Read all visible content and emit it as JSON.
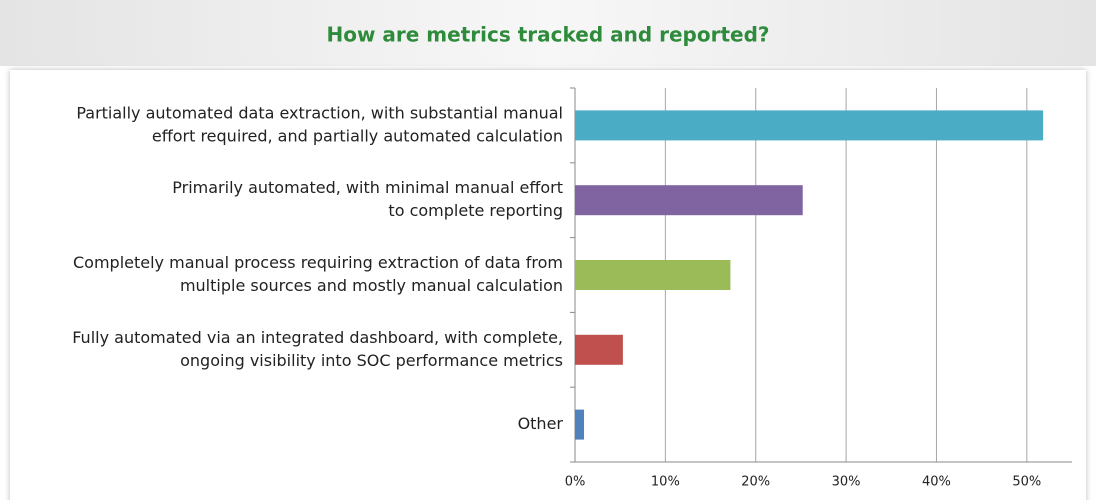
{
  "chart_data": {
    "type": "bar",
    "orientation": "horizontal",
    "title": "How are metrics tracked and reported?",
    "categories": [
      [
        "Partially automated data extraction, with substantial manual",
        "effort required, and partially automated calculation"
      ],
      [
        "Primarily automated, with minimal manual effort",
        "to complete reporting"
      ],
      [
        "Completely manual process requiring extraction of data from",
        "multiple sources and mostly manual calculation"
      ],
      [
        "Fully automated via an integrated dashboard, with complete,",
        "ongoing visibility into SOC performance metrics"
      ],
      [
        "Other"
      ]
    ],
    "values": [
      51.8,
      25.2,
      17.2,
      5.3,
      1.0
    ],
    "colors": [
      "#4bacc6",
      "#8064a2",
      "#9bbb59",
      "#c0504d",
      "#4f81bd"
    ],
    "xlim": [
      0,
      55
    ],
    "xticks": [
      {
        "value": 0,
        "label": "0%"
      },
      {
        "value": 10,
        "label": "10%"
      },
      {
        "value": 20,
        "label": "20%"
      },
      {
        "value": 30,
        "label": "30%"
      },
      {
        "value": 40,
        "label": "40%"
      },
      {
        "value": 50,
        "label": "50%"
      }
    ],
    "grid": true
  }
}
